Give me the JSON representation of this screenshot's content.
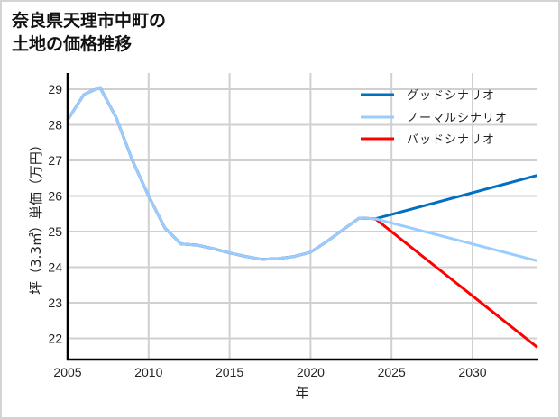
{
  "title": {
    "line1": "奈良県天理市中町の",
    "line2": "土地の価格推移"
  },
  "chart_data": {
    "type": "line",
    "title": "奈良県天理市中町の土地の価格推移",
    "xlabel": "年",
    "ylabel": "坪（3.3㎡）単価（万円）",
    "xlim": [
      2005,
      2034
    ],
    "ylim": [
      21.4,
      29.45
    ],
    "xticks": [
      2005,
      2010,
      2015,
      2020,
      2025,
      2030
    ],
    "yticks": [
      22,
      23,
      24,
      25,
      26,
      27,
      28,
      29
    ],
    "grid": true,
    "legend_position": "upper right",
    "series": [
      {
        "name": "グッドシナリオ",
        "color": "#0070C0",
        "x": [
          2005,
          2006,
          2007,
          2008,
          2009,
          2010,
          2011,
          2012,
          2013,
          2014,
          2015,
          2016,
          2017,
          2018,
          2019,
          2020,
          2021,
          2022,
          2023,
          2024,
          2034
        ],
        "values": [
          28.14,
          28.85,
          29.05,
          28.2,
          27.0,
          26.0,
          25.1,
          24.65,
          24.62,
          24.52,
          24.4,
          24.3,
          24.22,
          24.24,
          24.3,
          24.42,
          24.72,
          25.05,
          25.38,
          25.36,
          26.58
        ]
      },
      {
        "name": "ノーマルシナリオ",
        "color": "#99CCFF",
        "x": [
          2005,
          2006,
          2007,
          2008,
          2009,
          2010,
          2011,
          2012,
          2013,
          2014,
          2015,
          2016,
          2017,
          2018,
          2019,
          2020,
          2021,
          2022,
          2023,
          2024,
          2034
        ],
        "values": [
          28.14,
          28.85,
          29.05,
          28.2,
          27.0,
          26.0,
          25.1,
          24.65,
          24.62,
          24.52,
          24.4,
          24.3,
          24.22,
          24.24,
          24.3,
          24.42,
          24.72,
          25.05,
          25.38,
          25.36,
          24.18
        ]
      },
      {
        "name": "バッドシナリオ",
        "color": "#FF0000",
        "x": [
          2005,
          2006,
          2007,
          2008,
          2009,
          2010,
          2011,
          2012,
          2013,
          2014,
          2015,
          2016,
          2017,
          2018,
          2019,
          2020,
          2021,
          2022,
          2023,
          2024,
          2034
        ],
        "values": [
          28.14,
          28.85,
          29.05,
          28.2,
          27.0,
          26.0,
          25.1,
          24.65,
          24.62,
          24.52,
          24.4,
          24.3,
          24.22,
          24.24,
          24.3,
          24.42,
          24.72,
          25.05,
          25.38,
          25.36,
          21.75
        ]
      }
    ]
  }
}
